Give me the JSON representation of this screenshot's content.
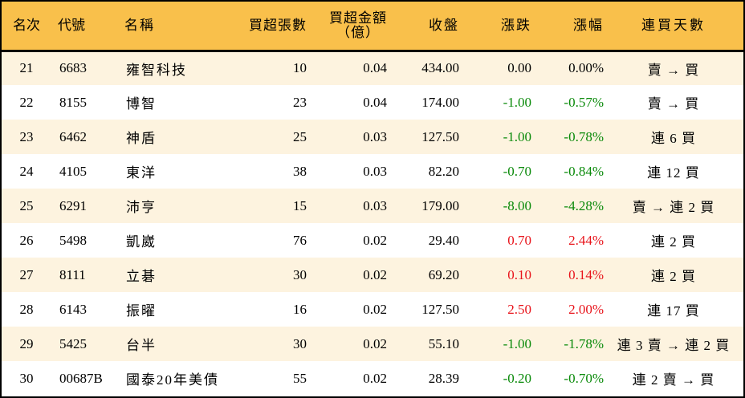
{
  "table": {
    "headers": {
      "rank": "名次",
      "code": "代號",
      "name": "名稱",
      "net_buy_volume": "買超張數",
      "net_buy_amount_line1": "買超金額",
      "net_buy_amount_line2": "（億）",
      "close": "收盤",
      "change": "漲跌",
      "change_pct": "漲幅",
      "consecutive_days": "連買天數"
    },
    "colors": {
      "header_bg": "#f9c04b",
      "row_odd_bg": "#fdf3df",
      "row_even_bg": "#ffffff",
      "up": "#e8141b",
      "down": "#0a8a0a"
    },
    "rows": [
      {
        "rank": "21",
        "code": "6683",
        "name": "雍智科技",
        "volume": "10",
        "amount": "0.04",
        "close": "434.00",
        "change": "0.00",
        "pct": "0.00%",
        "trend": "flat",
        "days": "賣 → 買"
      },
      {
        "rank": "22",
        "code": "8155",
        "name": "博智",
        "volume": "23",
        "amount": "0.04",
        "close": "174.00",
        "change": "-1.00",
        "pct": "-0.57%",
        "trend": "down",
        "days": "賣 → 買"
      },
      {
        "rank": "23",
        "code": "6462",
        "name": "神盾",
        "volume": "25",
        "amount": "0.03",
        "close": "127.50",
        "change": "-1.00",
        "pct": "-0.78%",
        "trend": "down",
        "days": "連 6 買"
      },
      {
        "rank": "24",
        "code": "4105",
        "name": "東洋",
        "volume": "38",
        "amount": "0.03",
        "close": "82.20",
        "change": "-0.70",
        "pct": "-0.84%",
        "trend": "down",
        "days": "連 12 買"
      },
      {
        "rank": "25",
        "code": "6291",
        "name": "沛亨",
        "volume": "15",
        "amount": "0.03",
        "close": "179.00",
        "change": "-8.00",
        "pct": "-4.28%",
        "trend": "down",
        "days": "賣 → 連 2 買"
      },
      {
        "rank": "26",
        "code": "5498",
        "name": "凱崴",
        "volume": "76",
        "amount": "0.02",
        "close": "29.40",
        "change": "0.70",
        "pct": "2.44%",
        "trend": "up",
        "days": "連 2 買"
      },
      {
        "rank": "27",
        "code": "8111",
        "name": "立碁",
        "volume": "30",
        "amount": "0.02",
        "close": "69.20",
        "change": "0.10",
        "pct": "0.14%",
        "trend": "up",
        "days": "連 2 買"
      },
      {
        "rank": "28",
        "code": "6143",
        "name": "振曜",
        "volume": "16",
        "amount": "0.02",
        "close": "127.50",
        "change": "2.50",
        "pct": "2.00%",
        "trend": "up",
        "days": "連 17 買"
      },
      {
        "rank": "29",
        "code": "5425",
        "name": "台半",
        "volume": "30",
        "amount": "0.02",
        "close": "55.10",
        "change": "-1.00",
        "pct": "-1.78%",
        "trend": "down",
        "days": "連 3 賣 → 連 2 買"
      },
      {
        "rank": "30",
        "code": "00687B",
        "name": "國泰20年美債",
        "volume": "55",
        "amount": "0.02",
        "close": "28.39",
        "change": "-0.20",
        "pct": "-0.70%",
        "trend": "down",
        "days": "連 2 賣 → 買"
      }
    ]
  }
}
